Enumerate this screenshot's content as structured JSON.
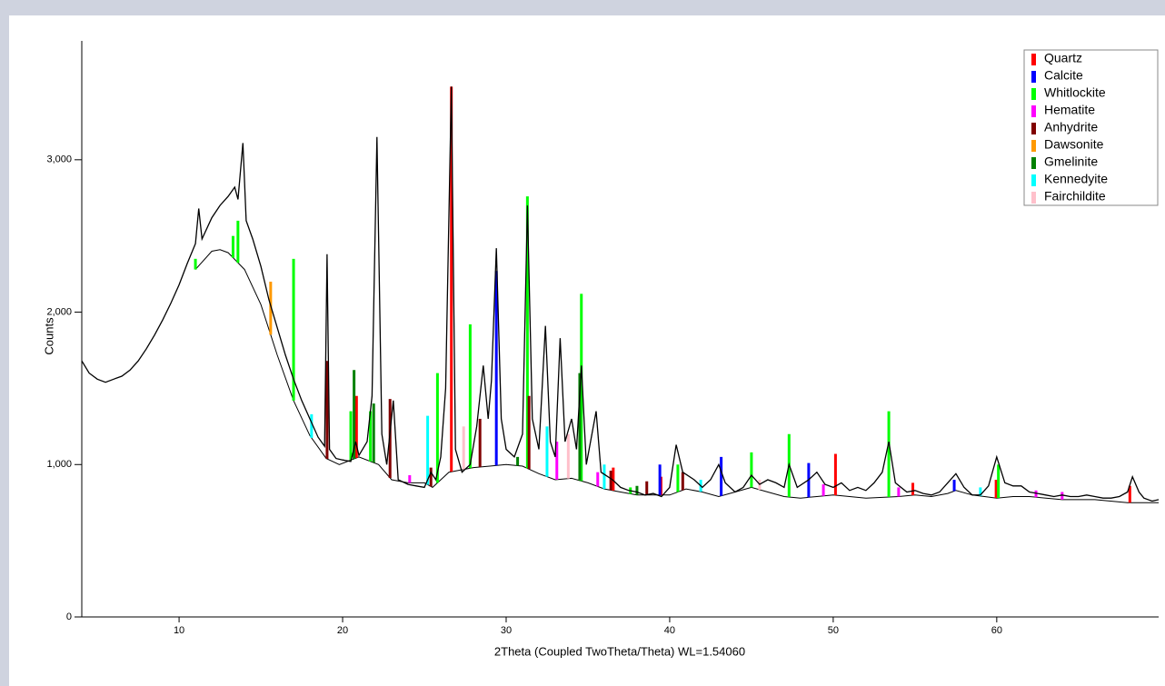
{
  "chart_data": {
    "type": "xrd",
    "y_label": "Counts",
    "x_label": "2Theta (Coupled TwoTheta/Theta) WL=1.54060",
    "xlim": [
      4.05,
      69.9
    ],
    "ylim": [
      0,
      3780
    ],
    "xticks": [
      10,
      20,
      30,
      40,
      50,
      60
    ],
    "yticks": [
      0,
      {
        "value": 1000,
        "label": "1,000"
      },
      {
        "value": 2000,
        "label": "2,000"
      },
      {
        "value": 3000,
        "label": "3,000"
      }
    ],
    "pattern": {
      "color": "#000000",
      "x": [
        4.05,
        4.5,
        5,
        5.5,
        6,
        6.5,
        7,
        7.5,
        8,
        8.5,
        9,
        9.5,
        10,
        10.5,
        11,
        11.2,
        11.4,
        12,
        12.5,
        13,
        13.4,
        13.6,
        13.9,
        14.1,
        14.5,
        15,
        15.5,
        16,
        16.5,
        17,
        17.5,
        18,
        18.5,
        18.9,
        19.05,
        19.2,
        19.6,
        20,
        20.5,
        20.8,
        21,
        21.5,
        21.8,
        22.1,
        22.4,
        22.7,
        23.1,
        23.4,
        24,
        24.5,
        25,
        25.4,
        25.7,
        26,
        26.3,
        26.65,
        26.9,
        27.3,
        27.8,
        28.2,
        28.6,
        28.9,
        29.1,
        29.4,
        29.7,
        30,
        30.5,
        31,
        31.3,
        31.6,
        32,
        32.4,
        32.7,
        33,
        33.3,
        33.6,
        34,
        34.3,
        34.6,
        34.9,
        35.5,
        35.8,
        36.5,
        37,
        37.5,
        38,
        38.5,
        39,
        39.5,
        40,
        40.4,
        40.8,
        41.5,
        42,
        42.5,
        43,
        43.4,
        44,
        44.5,
        45,
        45.5,
        46,
        46.5,
        47,
        47.3,
        47.8,
        48.5,
        49,
        49.5,
        50,
        50.5,
        51,
        51.5,
        52,
        52.5,
        53,
        53.4,
        53.8,
        54.5,
        55,
        55.5,
        56,
        56.5,
        57,
        57.5,
        58,
        58.5,
        59,
        59.5,
        60,
        60.5,
        61,
        61.5,
        62,
        62.5,
        63,
        63.5,
        64,
        64.5,
        65,
        65.5,
        66,
        66.5,
        67,
        67.5,
        68,
        68.3,
        68.7,
        69,
        69.5,
        69.9
      ],
      "values": [
        1680,
        1600,
        1560,
        1540,
        1560,
        1580,
        1620,
        1680,
        1760,
        1850,
        1950,
        2060,
        2180,
        2320,
        2450,
        2680,
        2480,
        2620,
        2700,
        2760,
        2820,
        2740,
        3110,
        2600,
        2480,
        2300,
        2080,
        1900,
        1720,
        1560,
        1420,
        1300,
        1180,
        1120,
        2380,
        1100,
        1040,
        1030,
        1020,
        1150,
        1060,
        1150,
        1450,
        3150,
        1200,
        1000,
        1420,
        900,
        870,
        860,
        850,
        950,
        900,
        1050,
        1500,
        3480,
        1100,
        950,
        1000,
        1250,
        1650,
        1300,
        1550,
        2420,
        1300,
        1100,
        1050,
        1200,
        2700,
        1300,
        1100,
        1910,
        1150,
        1050,
        1830,
        1150,
        1300,
        1100,
        1650,
        1000,
        1350,
        950,
        900,
        850,
        830,
        820,
        800,
        810,
        790,
        850,
        1130,
        950,
        900,
        850,
        900,
        1000,
        880,
        820,
        850,
        930,
        870,
        900,
        880,
        850,
        1000,
        850,
        900,
        950,
        870,
        850,
        880,
        830,
        850,
        830,
        880,
        950,
        1150,
        880,
        820,
        830,
        810,
        800,
        820,
        880,
        940,
        850,
        800,
        800,
        860,
        1050,
        880,
        860,
        860,
        820,
        810,
        800,
        790,
        800,
        790,
        790,
        800,
        790,
        780,
        780,
        790,
        820,
        920,
        820,
        780,
        760,
        770
      ]
    },
    "background": {
      "color": "#000000",
      "x": [
        11,
        12,
        12.5,
        13,
        14,
        15,
        16,
        17,
        18,
        19,
        19.8,
        21,
        22.2,
        23,
        24,
        25,
        25.5,
        26.5,
        28,
        29,
        30,
        31,
        32,
        33,
        34,
        35,
        36,
        37,
        38,
        40,
        41,
        42,
        43,
        44,
        45,
        46,
        47,
        48,
        49,
        50,
        51,
        52,
        54,
        55,
        56,
        57,
        57.5,
        58.5,
        60,
        61,
        62,
        64,
        66,
        68,
        69.9
      ],
      "values": [
        2280,
        2400,
        2410,
        2390,
        2280,
        2050,
        1720,
        1420,
        1190,
        1040,
        1000,
        1050,
        1000,
        900,
        880,
        880,
        850,
        950,
        980,
        990,
        1000,
        990,
        940,
        900,
        910,
        880,
        840,
        820,
        800,
        800,
        840,
        820,
        790,
        820,
        850,
        820,
        790,
        780,
        790,
        800,
        790,
        780,
        790,
        800,
        790,
        810,
        830,
        800,
        780,
        790,
        790,
        770,
        770,
        750,
        750
      ]
    },
    "series": [
      {
        "name": "Quartz",
        "color": "#ff0000",
        "x": [
          20.85,
          26.65,
          36.55,
          39.47,
          50.14,
          54.87,
          59.96,
          68.14
        ],
        "values": [
          1450,
          3480,
          980,
          920,
          1070,
          880,
          900,
          860
        ]
      },
      {
        "name": "Calcite",
        "color": "#0000ff",
        "x": [
          29.4,
          39.4,
          43.15,
          48.5,
          57.4
        ],
        "values": [
          2270,
          1000,
          1050,
          1010,
          900
        ]
      },
      {
        "name": "Whitlockite",
        "color": "#00ff00",
        "x": [
          11,
          13.3,
          13.6,
          17,
          20.5,
          21.7,
          25.8,
          27.8,
          31.3,
          34.6,
          37.6,
          40.5,
          45,
          47.3,
          53.4,
          60.1
        ],
        "values": [
          2350,
          2500,
          2600,
          2350,
          1350,
          1350,
          1600,
          1920,
          2760,
          2120,
          850,
          1000,
          1080,
          1200,
          1350,
          1000
        ]
      },
      {
        "name": "Hematite",
        "color": "#ff00ff",
        "x": [
          24.1,
          33.1,
          35.6,
          49.4,
          54,
          62.4,
          64
        ],
        "values": [
          930,
          1150,
          950,
          870,
          850,
          830,
          820
        ]
      },
      {
        "name": "Anhydrite",
        "color": "#800000",
        "x": [
          19.05,
          22.9,
          25.4,
          28.4,
          31.4,
          36.4,
          38.6,
          40.8
        ],
        "values": [
          1680,
          1430,
          980,
          1300,
          1450,
          960,
          890,
          950
        ]
      },
      {
        "name": "Dawsonite",
        "color": "#ff9900",
        "x": [
          15.6
        ],
        "values": [
          2200
        ]
      },
      {
        "name": "Gmelinite",
        "color": "#008000",
        "x": [
          20.7,
          21.9,
          30.7,
          34.5,
          38
        ],
        "values": [
          1620,
          1400,
          1050,
          1600,
          860
        ]
      },
      {
        "name": "Kennedyite",
        "color": "#00ffff",
        "x": [
          18.1,
          25.2,
          32.5,
          36,
          41.9,
          59
        ],
        "values": [
          1330,
          1320,
          1250,
          1000,
          900,
          850
        ]
      },
      {
        "name": "Fairchildite",
        "color": "#ffc0cb",
        "x": [
          27.4,
          33.8,
          45.5
        ],
        "values": [
          1250,
          1200,
          900
        ]
      }
    ]
  }
}
